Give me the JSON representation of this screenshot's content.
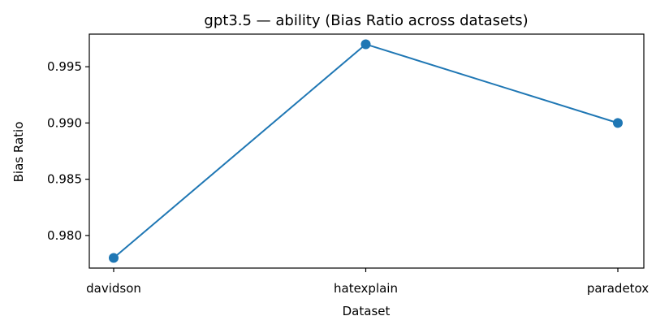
{
  "chart_data": {
    "type": "line",
    "title": "gpt3.5 — ability (Bias Ratio across datasets)",
    "xlabel": "Dataset",
    "ylabel": "Bias Ratio",
    "categories": [
      "davidson",
      "hatexplain",
      "paradetox"
    ],
    "series": [
      {
        "values": [
          0.978,
          0.997,
          0.99
        ],
        "color": "#1f77b4"
      }
    ],
    "ylim": [
      0.9771,
      0.9979
    ],
    "yticks": [
      0.98,
      0.985,
      0.99,
      0.995
    ],
    "ytick_labels": [
      "0.980",
      "0.985",
      "0.990",
      "0.995"
    ],
    "grid": false,
    "legend": "none"
  }
}
